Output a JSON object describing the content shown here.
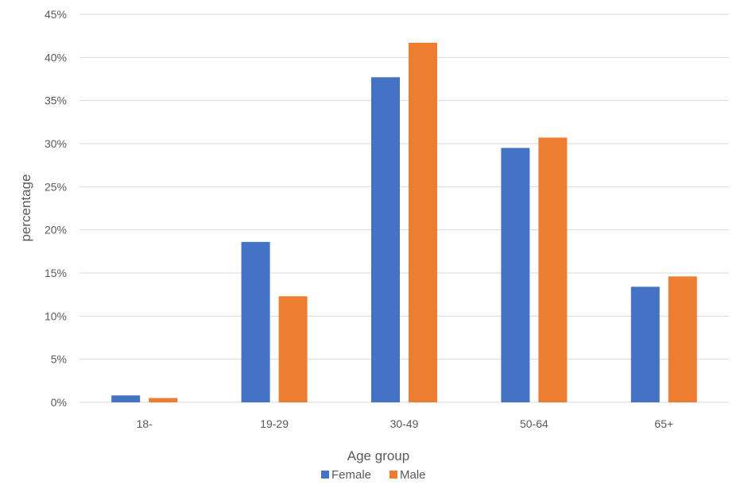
{
  "chart_data": {
    "type": "bar",
    "title": "",
    "xlabel": "Age group",
    "ylabel": "percentage",
    "categories": [
      "18-",
      "19-29",
      "30-49",
      "50-64",
      "65+"
    ],
    "series": [
      {
        "name": "Female",
        "color": "#4472c4",
        "values": [
          0.8,
          18.6,
          37.7,
          29.5,
          13.4
        ]
      },
      {
        "name": "Male",
        "color": "#ed7d31",
        "values": [
          0.5,
          12.3,
          41.7,
          30.7,
          14.6
        ]
      }
    ],
    "ylim": [
      0,
      45
    ],
    "yticks": [
      0,
      5,
      10,
      15,
      20,
      25,
      30,
      35,
      40,
      45
    ],
    "ytick_labels": [
      "0%",
      "5%",
      "10%",
      "15%",
      "20%",
      "25%",
      "30%",
      "35%",
      "40%",
      "45%"
    ],
    "grid": true,
    "legend": "bottom"
  }
}
